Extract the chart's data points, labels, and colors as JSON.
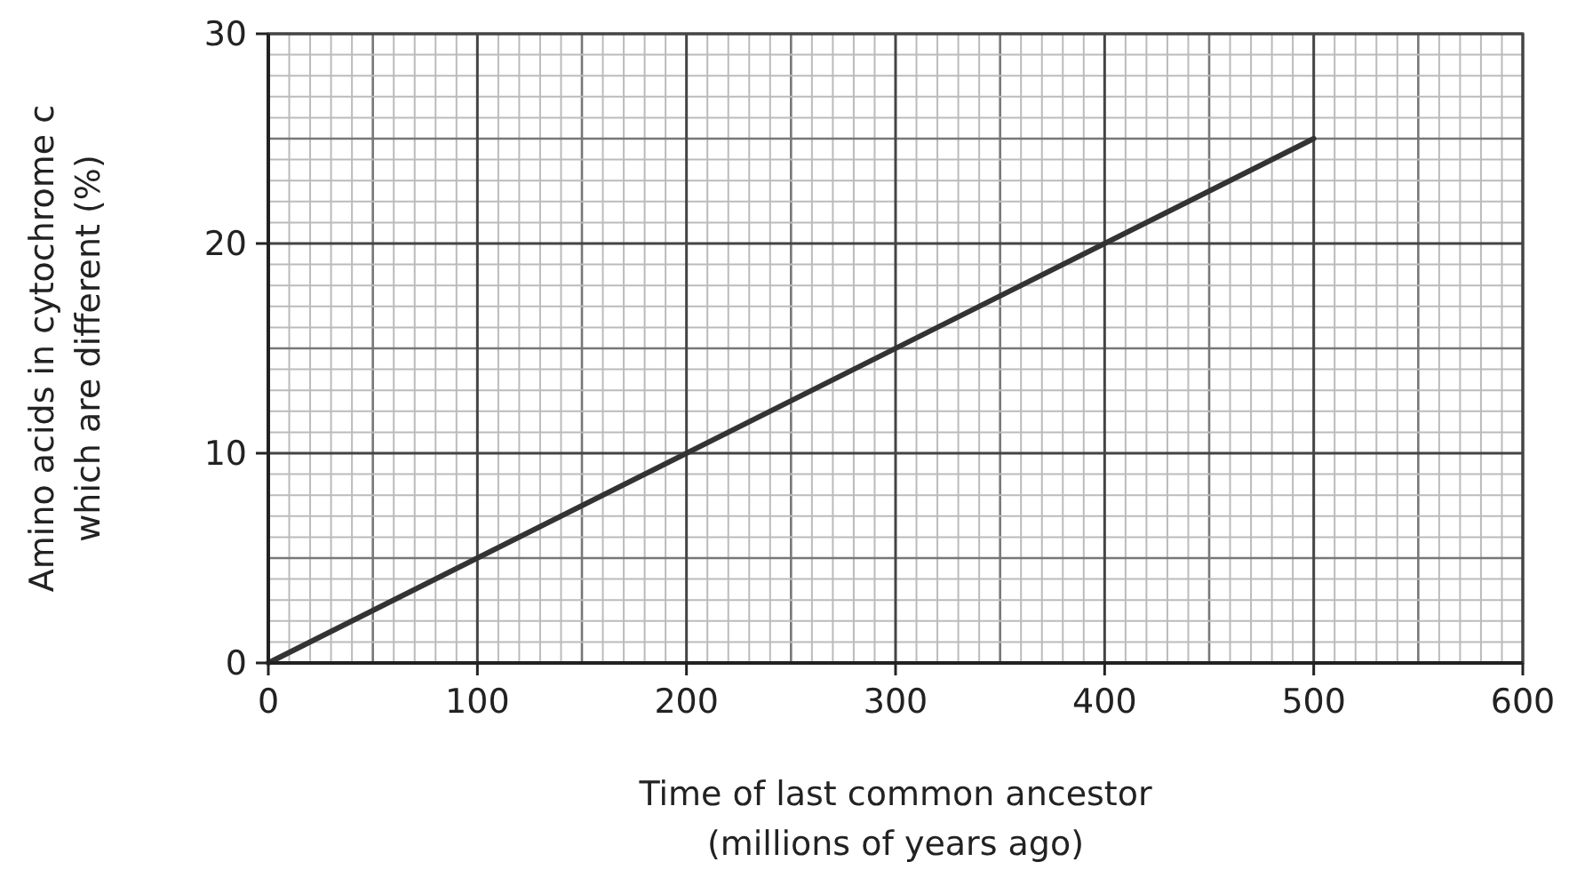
{
  "chart_data": {
    "type": "line",
    "xlabel": "Time of last common ancestor\n(millions of years ago)",
    "ylabel": "Amino acids in cytochrome c\nwhich are different (%)",
    "x": [
      0,
      500
    ],
    "series": [
      {
        "color": "#333333",
        "values": [
          0,
          25
        ]
      }
    ],
    "xlim": [
      0,
      600
    ],
    "xticks": [
      0,
      100,
      200,
      300,
      400,
      500,
      600
    ],
    "ylim": [
      0,
      30
    ],
    "yticks": [
      0,
      10,
      20,
      30
    ],
    "grid": true,
    "marker": "none",
    "line_style": "solid"
  }
}
